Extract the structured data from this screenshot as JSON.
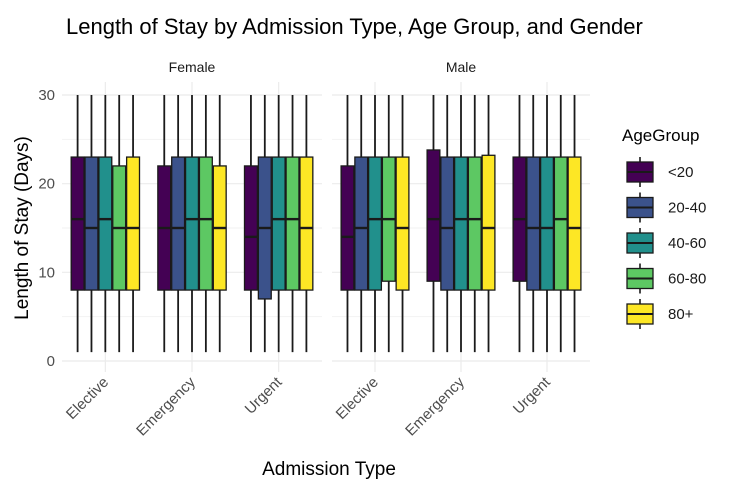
{
  "chart_data": {
    "type": "boxplot",
    "title": "Length of Stay by Admission Type, Age Group, and Gender",
    "xlabel": "Admission Type",
    "ylabel": "Length of Stay (Days)",
    "ylim": [
      0,
      30
    ],
    "yticks": [
      0,
      10,
      20,
      30
    ],
    "grid": true,
    "legend": {
      "title": "AgeGroup",
      "position": "right"
    },
    "categories": [
      "Elective",
      "Emergency",
      "Urgent"
    ],
    "series": [
      {
        "name": "<20",
        "color": "#440154"
      },
      {
        "name": "20-40",
        "color": "#3B528B"
      },
      {
        "name": "40-60",
        "color": "#21908C"
      },
      {
        "name": "60-80",
        "color": "#5DC863"
      },
      {
        "name": "80+",
        "color": "#FDE725"
      }
    ],
    "facets": [
      {
        "label": "Female",
        "groups": [
          {
            "category": "Elective",
            "boxes": [
              {
                "series": "<20",
                "min": 1,
                "q1": 8,
                "median": 16,
                "q3": 23,
                "max": 30
              },
              {
                "series": "20-40",
                "min": 1,
                "q1": 8,
                "median": 15,
                "q3": 23,
                "max": 30
              },
              {
                "series": "40-60",
                "min": 1,
                "q1": 8,
                "median": 16,
                "q3": 23,
                "max": 30
              },
              {
                "series": "60-80",
                "min": 1,
                "q1": 8,
                "median": 15,
                "q3": 22,
                "max": 30
              },
              {
                "series": "80+",
                "min": 1,
                "q1": 8,
                "median": 15,
                "q3": 23,
                "max": 30
              }
            ]
          },
          {
            "category": "Emergency",
            "boxes": [
              {
                "series": "<20",
                "min": 1,
                "q1": 8,
                "median": 15,
                "q3": 22,
                "max": 30
              },
              {
                "series": "20-40",
                "min": 1,
                "q1": 8,
                "median": 15,
                "q3": 23,
                "max": 30
              },
              {
                "series": "40-60",
                "min": 1,
                "q1": 8,
                "median": 16,
                "q3": 23,
                "max": 30
              },
              {
                "series": "60-80",
                "min": 1,
                "q1": 8,
                "median": 16,
                "q3": 23,
                "max": 30
              },
              {
                "series": "80+",
                "min": 1,
                "q1": 8,
                "median": 15,
                "q3": 22,
                "max": 30
              }
            ]
          },
          {
            "category": "Urgent",
            "boxes": [
              {
                "series": "<20",
                "min": 1,
                "q1": 8,
                "median": 14,
                "q3": 22,
                "max": 30
              },
              {
                "series": "20-40",
                "min": 1,
                "q1": 7,
                "median": 15,
                "q3": 23,
                "max": 30
              },
              {
                "series": "40-60",
                "min": 1,
                "q1": 8,
                "median": 16,
                "q3": 23,
                "max": 30
              },
              {
                "series": "60-80",
                "min": 1,
                "q1": 8,
                "median": 16,
                "q3": 23,
                "max": 30
              },
              {
                "series": "80+",
                "min": 1,
                "q1": 8,
                "median": 15,
                "q3": 23,
                "max": 30
              }
            ]
          }
        ]
      },
      {
        "label": "Male",
        "groups": [
          {
            "category": "Elective",
            "boxes": [
              {
                "series": "<20",
                "min": 1,
                "q1": 8,
                "median": 14,
                "q3": 22,
                "max": 30
              },
              {
                "series": "20-40",
                "min": 1,
                "q1": 8,
                "median": 15,
                "q3": 23,
                "max": 30
              },
              {
                "series": "40-60",
                "min": 1,
                "q1": 8,
                "median": 16,
                "q3": 23,
                "max": 30
              },
              {
                "series": "60-80",
                "min": 1,
                "q1": 9,
                "median": 16,
                "q3": 23,
                "max": 30
              },
              {
                "series": "80+",
                "min": 1,
                "q1": 8,
                "median": 15,
                "q3": 23,
                "max": 30
              }
            ]
          },
          {
            "category": "Emergency",
            "boxes": [
              {
                "series": "<20",
                "min": 1,
                "q1": 9,
                "median": 16,
                "q3": 23.8,
                "max": 30
              },
              {
                "series": "20-40",
                "min": 1,
                "q1": 8,
                "median": 15,
                "q3": 23,
                "max": 30
              },
              {
                "series": "40-60",
                "min": 1,
                "q1": 8,
                "median": 16,
                "q3": 23,
                "max": 30
              },
              {
                "series": "60-80",
                "min": 1,
                "q1": 8,
                "median": 16,
                "q3": 23,
                "max": 30
              },
              {
                "series": "80+",
                "min": 1,
                "q1": 8,
                "median": 15,
                "q3": 23.2,
                "max": 30
              }
            ]
          },
          {
            "category": "Urgent",
            "boxes": [
              {
                "series": "<20",
                "min": 1,
                "q1": 9,
                "median": 16,
                "q3": 23,
                "max": 30
              },
              {
                "series": "20-40",
                "min": 1,
                "q1": 8,
                "median": 15,
                "q3": 23,
                "max": 30
              },
              {
                "series": "40-60",
                "min": 1,
                "q1": 8,
                "median": 15,
                "q3": 23,
                "max": 30
              },
              {
                "series": "60-80",
                "min": 1,
                "q1": 8,
                "median": 16,
                "q3": 23,
                "max": 30
              },
              {
                "series": "80+",
                "min": 1,
                "q1": 8,
                "median": 15,
                "q3": 23,
                "max": 30
              }
            ]
          }
        ]
      }
    ]
  }
}
